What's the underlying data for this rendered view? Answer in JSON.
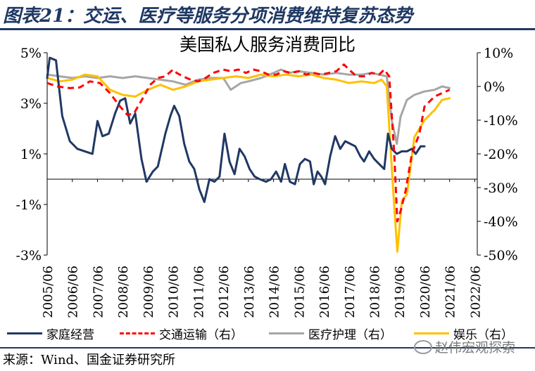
{
  "header": {
    "figure_title": "图表21：交运、医疗等服务分项消费维持复苏态势",
    "chart_title": "美国私人服务消费同比"
  },
  "footer": {
    "source": "来源：Wind、国金证券研究所",
    "watermark": "赵伟宏观探索"
  },
  "colors": {
    "family": "#203864",
    "transport": "#ff0000",
    "medical": "#a6a6a6",
    "entertainment": "#ffc000",
    "title": "#1f3864"
  },
  "chart_data": {
    "type": "line",
    "title": "美国私人服务消费同比",
    "grid": false,
    "legend_position": "bottom",
    "x_ticks": [
      "2005/06",
      "2006/06",
      "2007/06",
      "2008/06",
      "2009/06",
      "2010/06",
      "2011/06",
      "2012/06",
      "2013/06",
      "2014/06",
      "2015/06",
      "2016/06",
      "2017/06",
      "2018/06",
      "2019/06",
      "2020/06",
      "2021/06",
      "2022/06"
    ],
    "y_left": {
      "ticks": [
        "5%",
        "3%",
        "1%",
        "-1%",
        "-3%"
      ],
      "range": [
        -3,
        5
      ]
    },
    "y_right": {
      "ticks": [
        "10%",
        "0%",
        "-10%",
        "-20%",
        "-30%",
        "-40%",
        "-50%"
      ],
      "range": [
        -50,
        10
      ]
    },
    "series": [
      {
        "name": "家庭经营",
        "axis": "left",
        "style": "solid",
        "points": [
          [
            2005.0,
            4.0
          ],
          [
            2005.1,
            4.8
          ],
          [
            2005.35,
            4.7
          ],
          [
            2005.6,
            2.5
          ],
          [
            2005.9,
            1.5
          ],
          [
            2006.2,
            1.2
          ],
          [
            2006.5,
            1.1
          ],
          [
            2006.8,
            1.0
          ],
          [
            2007.0,
            2.3
          ],
          [
            2007.2,
            1.7
          ],
          [
            2007.45,
            1.8
          ],
          [
            2007.7,
            2.6
          ],
          [
            2007.9,
            3.1
          ],
          [
            2008.1,
            3.2
          ],
          [
            2008.3,
            2.2
          ],
          [
            2008.5,
            2.6
          ],
          [
            2008.75,
            0.8
          ],
          [
            2008.95,
            -0.1
          ],
          [
            2009.2,
            0.3
          ],
          [
            2009.4,
            0.5
          ],
          [
            2009.7,
            1.8
          ],
          [
            2009.9,
            2.5
          ],
          [
            2010.05,
            2.9
          ],
          [
            2010.25,
            2.5
          ],
          [
            2010.45,
            1.4
          ],
          [
            2010.65,
            0.7
          ],
          [
            2010.85,
            0.4
          ],
          [
            2011.05,
            -0.4
          ],
          [
            2011.25,
            -0.9
          ],
          [
            2011.45,
            0.0
          ],
          [
            2011.65,
            -0.1
          ],
          [
            2011.85,
            0.1
          ],
          [
            2012.05,
            1.8
          ],
          [
            2012.25,
            0.7
          ],
          [
            2012.45,
            0.2
          ],
          [
            2012.65,
            1.2
          ],
          [
            2012.85,
            0.9
          ],
          [
            2013.05,
            0.4
          ],
          [
            2013.25,
            0.1
          ],
          [
            2013.45,
            0.0
          ],
          [
            2013.7,
            -0.1
          ],
          [
            2013.9,
            0.0
          ],
          [
            2014.1,
            0.3
          ],
          [
            2014.3,
            -0.1
          ],
          [
            2014.45,
            0.6
          ],
          [
            2014.65,
            -0.1
          ],
          [
            2014.85,
            -0.2
          ],
          [
            2015.05,
            0.6
          ],
          [
            2015.25,
            0.8
          ],
          [
            2015.45,
            0.7
          ],
          [
            2015.6,
            -0.2
          ],
          [
            2015.75,
            0.3
          ],
          [
            2015.9,
            0.1
          ],
          [
            2016.05,
            -0.2
          ],
          [
            2016.25,
            0.9
          ],
          [
            2016.45,
            1.7
          ],
          [
            2016.65,
            1.2
          ],
          [
            2016.85,
            1.5
          ],
          [
            2017.05,
            1.4
          ],
          [
            2017.25,
            1.3
          ],
          [
            2017.45,
            0.9
          ],
          [
            2017.6,
            0.7
          ],
          [
            2017.8,
            1.1
          ],
          [
            2018.0,
            0.8
          ],
          [
            2018.2,
            0.6
          ],
          [
            2018.4,
            0.4
          ],
          [
            2018.55,
            1.8
          ],
          [
            2018.7,
            1.2
          ],
          [
            2018.9,
            1.0
          ],
          [
            2019.1,
            1.1
          ],
          [
            2019.3,
            1.1
          ],
          [
            2019.5,
            1.2
          ],
          [
            2019.65,
            1.0
          ],
          [
            2019.85,
            1.3
          ],
          [
            2020.0,
            1.3
          ]
        ]
      },
      {
        "name": "交通运输（右）",
        "axis": "right",
        "style": "dashed",
        "points": [
          [
            2005.0,
            1
          ],
          [
            2005.4,
            0
          ],
          [
            2005.9,
            -0.5
          ],
          [
            2006.3,
            -0.3
          ],
          [
            2006.7,
            1.5
          ],
          [
            2007.1,
            1.0
          ],
          [
            2007.5,
            -2.0
          ],
          [
            2007.9,
            -6.0
          ],
          [
            2008.2,
            -8.5
          ],
          [
            2008.45,
            -8.0
          ],
          [
            2008.8,
            -3.5
          ],
          [
            2009.1,
            0.5
          ],
          [
            2009.4,
            2.5
          ],
          [
            2009.7,
            3.0
          ],
          [
            2010.0,
            5.0
          ],
          [
            2010.15,
            4.0
          ],
          [
            2010.4,
            3.0
          ],
          [
            2010.7,
            2.0
          ],
          [
            2011.0,
            1.5
          ],
          [
            2011.3,
            2.5
          ],
          [
            2011.6,
            4.0
          ],
          [
            2012.0,
            5.0
          ],
          [
            2012.3,
            4.5
          ],
          [
            2012.6,
            5.0
          ],
          [
            2012.9,
            4.0
          ],
          [
            2013.2,
            5.0
          ],
          [
            2013.5,
            4.5
          ],
          [
            2013.8,
            3.5
          ],
          [
            2014.1,
            3.5
          ],
          [
            2014.4,
            4.5
          ],
          [
            2014.7,
            4.0
          ],
          [
            2015.0,
            4.5
          ],
          [
            2015.3,
            3.5
          ],
          [
            2015.6,
            4.0
          ],
          [
            2015.9,
            3.5
          ],
          [
            2016.2,
            4.0
          ],
          [
            2016.5,
            4.5
          ],
          [
            2016.8,
            6.5
          ],
          [
            2017.0,
            5.0
          ],
          [
            2017.3,
            3.0
          ],
          [
            2017.6,
            3.0
          ],
          [
            2017.9,
            4.0
          ],
          [
            2018.2,
            3.5
          ],
          [
            2018.4,
            5.0
          ],
          [
            2018.6,
            3.0
          ],
          [
            2018.8,
            -20.0
          ],
          [
            2018.92,
            -40.0
          ],
          [
            2019.05,
            -37.0
          ],
          [
            2019.25,
            -31.0
          ],
          [
            2019.5,
            -20.0
          ],
          [
            2019.8,
            -14.0
          ],
          [
            2020.0,
            -6.0
          ],
          [
            2020.4,
            -3.0
          ],
          [
            2020.7,
            -2.0
          ],
          [
            2021.0,
            -1.0
          ]
        ]
      },
      {
        "name": "医疗护理（右）",
        "axis": "right",
        "style": "solid",
        "points": [
          [
            2005.0,
            3.5
          ],
          [
            2005.5,
            3.0
          ],
          [
            2006.0,
            2.5
          ],
          [
            2006.5,
            3.0
          ],
          [
            2007.0,
            2.5
          ],
          [
            2007.5,
            3.0
          ],
          [
            2008.0,
            2.5
          ],
          [
            2008.5,
            3.0
          ],
          [
            2009.0,
            2.5
          ],
          [
            2009.5,
            2.0
          ],
          [
            2010.0,
            1.5
          ],
          [
            2010.5,
            0.5
          ],
          [
            2011.0,
            2.0
          ],
          [
            2011.5,
            2.5
          ],
          [
            2012.0,
            2.5
          ],
          [
            2012.3,
            -1.0
          ],
          [
            2012.7,
            1.0
          ],
          [
            2013.0,
            1.5
          ],
          [
            2013.5,
            2.5
          ],
          [
            2014.0,
            4.0
          ],
          [
            2014.3,
            5.0
          ],
          [
            2014.6,
            4.0
          ],
          [
            2015.0,
            4.5
          ],
          [
            2015.5,
            4.0
          ],
          [
            2016.0,
            3.5
          ],
          [
            2016.5,
            4.0
          ],
          [
            2017.0,
            3.5
          ],
          [
            2017.5,
            3.5
          ],
          [
            2017.9,
            4.0
          ],
          [
            2018.2,
            3.5
          ],
          [
            2018.5,
            3.0
          ],
          [
            2018.7,
            -10.0
          ],
          [
            2018.9,
            -17.0
          ],
          [
            2019.05,
            -9.0
          ],
          [
            2019.3,
            -4.0
          ],
          [
            2019.6,
            -2.5
          ],
          [
            2020.0,
            -1.5
          ],
          [
            2020.4,
            -1.0
          ],
          [
            2020.7,
            0.0
          ],
          [
            2021.0,
            -0.5
          ]
        ]
      },
      {
        "name": "娱乐（右）",
        "axis": "right",
        "style": "solid",
        "points": [
          [
            2005.0,
            2.5
          ],
          [
            2005.5,
            1.5
          ],
          [
            2006.0,
            2.0
          ],
          [
            2006.5,
            3.5
          ],
          [
            2007.0,
            3.0
          ],
          [
            2007.5,
            -1.0
          ],
          [
            2008.0,
            -2.5
          ],
          [
            2008.5,
            -3.0
          ],
          [
            2009.0,
            -1.0
          ],
          [
            2009.5,
            0.5
          ],
          [
            2010.0,
            -1.0
          ],
          [
            2010.5,
            0.0
          ],
          [
            2011.0,
            1.5
          ],
          [
            2011.5,
            2.0
          ],
          [
            2012.0,
            2.5
          ],
          [
            2012.5,
            3.0
          ],
          [
            2013.0,
            2.5
          ],
          [
            2013.5,
            3.5
          ],
          [
            2014.0,
            3.0
          ],
          [
            2014.5,
            3.5
          ],
          [
            2015.0,
            3.0
          ],
          [
            2015.5,
            3.5
          ],
          [
            2016.0,
            2.5
          ],
          [
            2016.5,
            2.0
          ],
          [
            2017.0,
            1.0
          ],
          [
            2017.5,
            1.5
          ],
          [
            2018.0,
            1.0
          ],
          [
            2018.3,
            2.0
          ],
          [
            2018.5,
            0.0
          ],
          [
            2018.75,
            -30.0
          ],
          [
            2018.92,
            -49.0
          ],
          [
            2019.1,
            -34.0
          ],
          [
            2019.3,
            -32.0
          ],
          [
            2019.6,
            -15.0
          ],
          [
            2020.0,
            -10.0
          ],
          [
            2020.4,
            -7.0
          ],
          [
            2020.7,
            -4.0
          ],
          [
            2021.0,
            -3.5
          ]
        ]
      }
    ]
  }
}
